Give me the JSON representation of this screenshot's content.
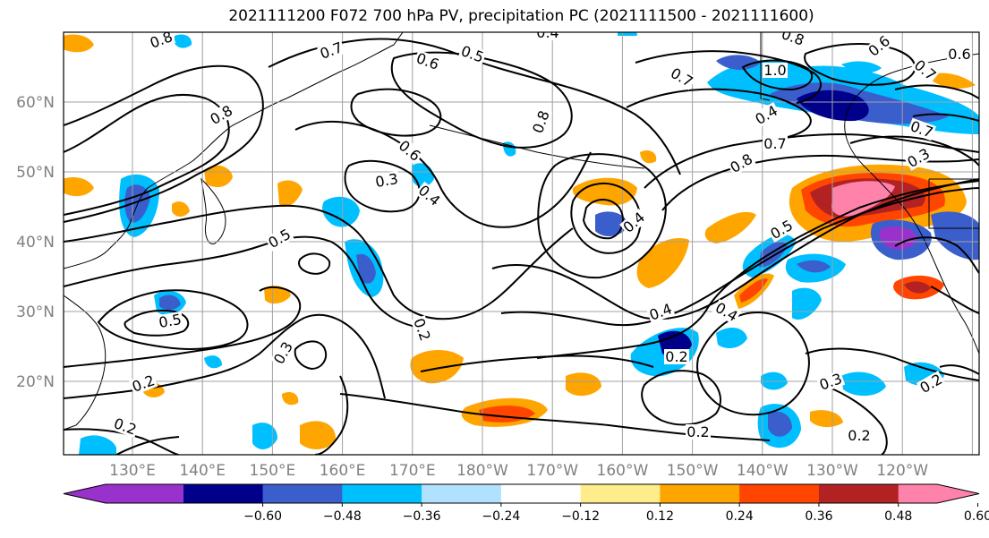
{
  "title": "2021111200 F072 700 hPa PV, precipitation PC (2021111500 - 2021111600)",
  "lat_labels": [
    {
      "text": "60°N",
      "lat": 60
    },
    {
      "text": "50°N",
      "lat": 50
    },
    {
      "text": "40°N",
      "lat": 40
    },
    {
      "text": "30°N",
      "lat": 30
    },
    {
      "text": "20°N",
      "lat": 20
    }
  ],
  "lon_labels": [
    "130°E",
    "140°E",
    "150°E",
    "160°E",
    "170°E",
    "180°W",
    "170°W",
    "160°W",
    "150°W",
    "140°W",
    "130°W",
    "120°W"
  ],
  "colorbar": {
    "ticks": [
      "−0.60",
      "−0.48",
      "−0.36",
      "−0.24",
      "−0.12",
      "0.12",
      "0.24",
      "0.36",
      "0.48",
      "0.60"
    ],
    "colors": [
      "#9932cc",
      "#00008b",
      "#3a5fcd",
      "#00bfff",
      "#b0e2ff",
      "#ffffff",
      "#ffec8b",
      "#ffa500",
      "#ff4500",
      "#b22222",
      "#ff82ab"
    ]
  },
  "contour_labels": [
    {
      "text": "0.8"
    },
    {
      "text": "0.7"
    },
    {
      "text": "0.6"
    },
    {
      "text": "0.5"
    },
    {
      "text": "0.4"
    },
    {
      "text": "0.7"
    },
    {
      "text": "0.8"
    },
    {
      "text": "1.0"
    },
    {
      "text": "0.8"
    },
    {
      "text": "0.6"
    },
    {
      "text": "0.7"
    },
    {
      "text": "0.3"
    },
    {
      "text": "0.4"
    },
    {
      "text": "0.6"
    },
    {
      "text": "0.4"
    },
    {
      "text": "0.5"
    },
    {
      "text": "0.5"
    },
    {
      "text": "0.3"
    },
    {
      "text": "0.2"
    },
    {
      "text": "0.2"
    },
    {
      "text": "0.2"
    },
    {
      "text": "0.4"
    },
    {
      "text": "0.4"
    },
    {
      "text": "0.2"
    },
    {
      "text": "0.4"
    },
    {
      "text": "0.5"
    },
    {
      "text": "0.7"
    },
    {
      "text": "0.8"
    },
    {
      "text": "0.3"
    },
    {
      "text": "0.2"
    },
    {
      "text": "0.2"
    },
    {
      "text": "0.2"
    },
    {
      "text": "0.7"
    },
    {
      "text": "0.3"
    },
    {
      "text": "0.6"
    },
    {
      "text": "0.8"
    }
  ],
  "icons": {
    "colorbar_left": "triangle-left-icon",
    "colorbar_right": "triangle-right-icon"
  }
}
